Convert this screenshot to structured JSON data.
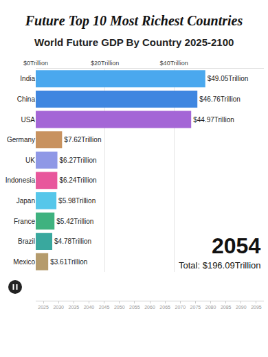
{
  "chart_data": {
    "type": "bar",
    "orientation": "horizontal",
    "title": "Future Top 10 Most Richest Countries",
    "subtitle": "World Future GDP By Country 2025-2100",
    "categories": [
      "India",
      "China",
      "USA",
      "Germany",
      "UK",
      "Indonesia",
      "Japan",
      "France",
      "Brazil",
      "Mexico"
    ],
    "values": [
      49.05,
      46.76,
      44.97,
      7.62,
      6.27,
      6.24,
      5.98,
      5.42,
      4.78,
      3.61
    ],
    "value_labels": [
      "$49.05Trillion",
      "$46.76Trillion",
      "$44.97Trillion",
      "$7.62Trillion",
      "$6.27Trillion",
      "$6.24Trillion",
      "$5.98Trillion",
      "$5.42Trillion",
      "$4.78Trillion",
      "$3.61Trillion"
    ],
    "colors": [
      "#4aa8ee",
      "#3f86e0",
      "#a466d6",
      "#c8925f",
      "#8f98e6",
      "#e8579c",
      "#56c7ea",
      "#3fb27f",
      "#39a89e",
      "#b59b6c"
    ],
    "xlim": [
      0,
      66
    ],
    "xticks": [
      {
        "value": 0,
        "label": "$0Trillion"
      },
      {
        "value": 20,
        "label": "$20Trillion"
      },
      {
        "value": 40,
        "label": "$40Trillion"
      }
    ],
    "grid": true,
    "data_labels": true,
    "annotations": [
      "2054",
      "Total: $196.09Trillion"
    ],
    "timeline": [
      2025,
      2030,
      2035,
      2040,
      2045,
      2050,
      2055,
      2060,
      2065,
      2070,
      2075,
      2080,
      2085,
      2090,
      2095
    ]
  }
}
